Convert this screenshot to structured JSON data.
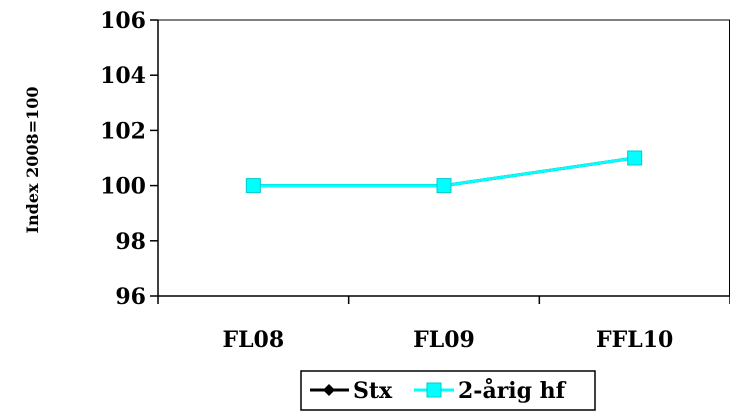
{
  "chart_data": {
    "type": "line",
    "title": "",
    "xlabel": "",
    "ylabel": "Index 2008=100",
    "categories": [
      "FL08",
      "FL09",
      "FFL10"
    ],
    "ylim": [
      96,
      106
    ],
    "yticks": [
      96,
      98,
      100,
      102,
      104,
      106
    ],
    "grid": false,
    "legend_position": "bottom",
    "series": [
      {
        "name": "Stx",
        "values": [
          100,
          100,
          101
        ],
        "color": "#000000",
        "marker": "diamond"
      },
      {
        "name": "2-årig hf",
        "values": [
          100,
          100,
          101
        ],
        "color": "#00ffff",
        "marker": "square"
      }
    ]
  }
}
